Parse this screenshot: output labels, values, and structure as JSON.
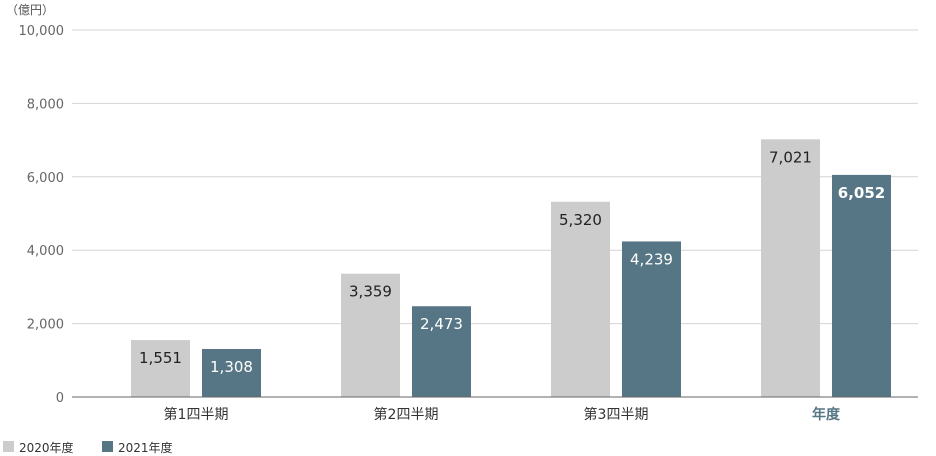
{
  "chart_data": {
    "type": "bar",
    "unit": "（億円）",
    "categories": [
      "第1四半期",
      "第2四半期",
      "第3四半期",
      "年度"
    ],
    "emphasized_category": "年度",
    "series": [
      {
        "name": "2020年度",
        "values": [
          1551,
          3359,
          5320,
          7021
        ],
        "labels": [
          "1,551",
          "3,359",
          "5,320",
          "7,021"
        ],
        "color": "#cccccc",
        "label_color": "#222222"
      },
      {
        "name": "2021年度",
        "values": [
          1308,
          2473,
          4239,
          6052
        ],
        "labels": [
          "1,308",
          "2,473",
          "4,239",
          "6,052"
        ],
        "color": "#567686",
        "label_color": "#ffffff"
      }
    ],
    "ylim": [
      0,
      10000
    ],
    "yticks": [
      0,
      2000,
      4000,
      6000,
      8000,
      10000
    ],
    "ytick_labels": [
      "0",
      "2,000",
      "4,000",
      "6,000",
      "8,000",
      "10,000"
    ],
    "grid": true,
    "legend_position": "bottom-left"
  }
}
